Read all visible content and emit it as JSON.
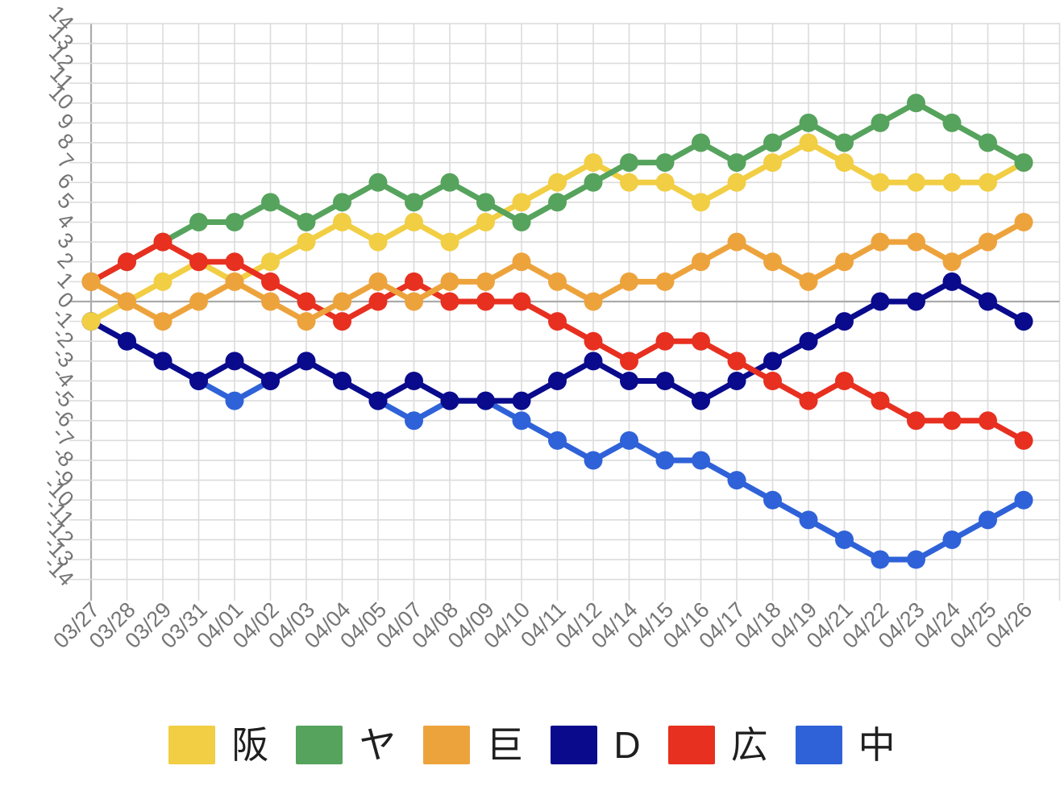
{
  "chart_data": {
    "type": "line",
    "title": "",
    "xlabel": "",
    "ylabel": "",
    "x": [
      "03/27",
      "03/28",
      "03/29",
      "03/31",
      "04/01",
      "04/02",
      "04/03",
      "04/04",
      "04/05",
      "04/07",
      "04/08",
      "04/09",
      "04/10",
      "04/11",
      "04/12",
      "04/14",
      "04/15",
      "04/16",
      "04/17",
      "04/18",
      "04/19",
      "04/21",
      "04/22",
      "04/23",
      "04/24",
      "04/25",
      "04/26"
    ],
    "ylim": [
      -14,
      14
    ],
    "y_tick_labels": [
      "14",
      "13",
      "12",
      "11",
      "10",
      "9",
      "8",
      "7",
      "6",
      "5",
      "4",
      "3",
      "2",
      "1",
      "0",
      "-1",
      "-2",
      "-3",
      "-4",
      "-5",
      "-6",
      "-7",
      "-8",
      "-9",
      "-10",
      "-11",
      "-12",
      "-13",
      "-14"
    ],
    "grid": true,
    "legend_position": "bottom",
    "series": [
      {
        "name": "阪",
        "color": "#F1CE43",
        "values": [
          -1,
          0,
          1,
          2,
          1,
          2,
          3,
          4,
          3,
          4,
          3,
          4,
          5,
          6,
          7,
          6,
          6,
          5,
          6,
          7,
          8,
          7,
          6,
          6,
          6,
          6,
          7
        ]
      },
      {
        "name": "ヤ",
        "color": "#56A35D",
        "values": [
          1,
          2,
          3,
          4,
          4,
          5,
          4,
          5,
          6,
          5,
          6,
          5,
          4,
          5,
          6,
          7,
          7,
          8,
          7,
          8,
          9,
          8,
          9,
          10,
          9,
          8,
          7
        ]
      },
      {
        "name": "巨",
        "color": "#EDA33C",
        "values": [
          1,
          0,
          -1,
          0,
          1,
          0,
          -1,
          0,
          1,
          0,
          1,
          1,
          2,
          1,
          0,
          1,
          1,
          2,
          3,
          2,
          1,
          2,
          3,
          3,
          2,
          3,
          4
        ]
      },
      {
        "name": "D",
        "color": "#0A0A8C",
        "values": [
          -1,
          -2,
          -3,
          -4,
          -3,
          -4,
          -3,
          -4,
          -5,
          -4,
          -5,
          -5,
          -5,
          -4,
          -3,
          -4,
          -4,
          -5,
          -4,
          -3,
          -2,
          -1,
          0,
          0,
          1,
          0,
          -1
        ]
      },
      {
        "name": "広",
        "color": "#E73020",
        "values": [
          1,
          2,
          3,
          2,
          2,
          1,
          0,
          -1,
          0,
          1,
          0,
          0,
          0,
          -1,
          -2,
          -3,
          -2,
          -2,
          -3,
          -4,
          -5,
          -4,
          -5,
          -6,
          -6,
          -6,
          -7
        ]
      },
      {
        "name": "中",
        "color": "#2F62D8",
        "values": [
          -1,
          -2,
          -3,
          -4,
          -5,
          -4,
          -3,
          -4,
          -5,
          -6,
          -5,
          -5,
          -6,
          -7,
          -8,
          -7,
          -8,
          -8,
          -9,
          -10,
          -11,
          -12,
          -13,
          -13,
          -12,
          -11,
          -10
        ]
      }
    ],
    "colors": {
      "gridline": "#DCDCDC",
      "zero_line": "#ABABAB",
      "axis_line": "#ABABAB",
      "tick_text": "#757575"
    }
  }
}
